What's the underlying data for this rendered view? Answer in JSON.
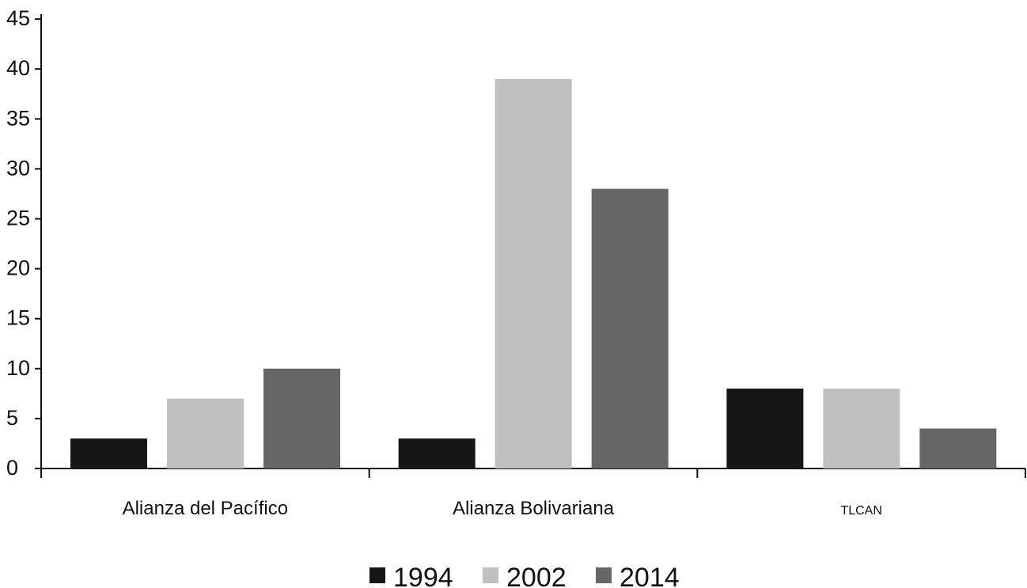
{
  "chart_data": {
    "type": "bar",
    "categories": [
      "Alianza del Pacífico",
      "Alianza Bolivariana",
      "TLCAN"
    ],
    "series": [
      {
        "name": "1994",
        "color": "#161616",
        "values": [
          3,
          3,
          8
        ]
      },
      {
        "name": "2002",
        "color": "#c0c0c1",
        "values": [
          7,
          39,
          8
        ]
      },
      {
        "name": "2014",
        "color": "#666666",
        "values": [
          10,
          28,
          4
        ]
      }
    ],
    "y_ticks": [
      "0",
      "5",
      "10",
      "15",
      "20",
      "25",
      "30",
      "35",
      "40",
      "45"
    ],
    "ylim": [
      0,
      45
    ],
    "legend_position": "bottom-center",
    "grid": false
  }
}
